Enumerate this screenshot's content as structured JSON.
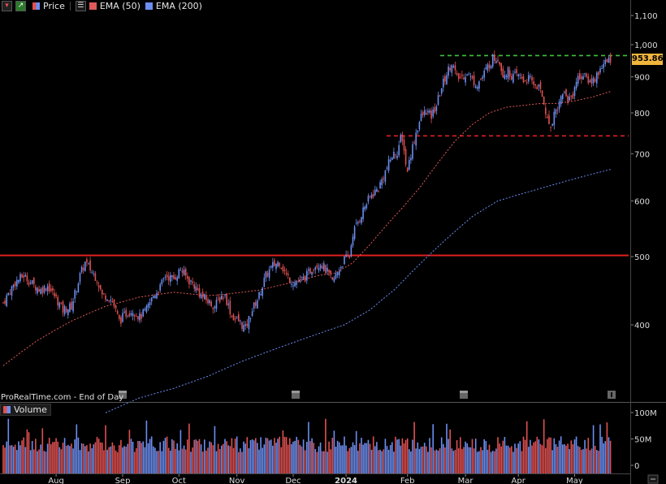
{
  "legend": {
    "price_label": "Price",
    "ema50_label": "EMA (50)",
    "ema200_label": "EMA (200)",
    "volume_label": "Volume",
    "ema50_color": "#e05a5a",
    "ema200_color": "#6b8ef0",
    "up_color": "#6b8ef0",
    "down_color": "#e05050"
  },
  "footer": {
    "source": "ProRealTime.com - End of Day"
  },
  "last_price": "953.86",
  "chart_data": {
    "type": "candlestick",
    "price_axis": {
      "scale": "log",
      "range": [
        330,
        1150
      ],
      "ticks": [
        "1,100",
        "1,000",
        "900",
        "800",
        "700",
        "600",
        "500",
        "400"
      ],
      "tick_values": [
        1100,
        1000,
        900,
        800,
        700,
        600,
        500,
        400
      ]
    },
    "volume_axis": {
      "range": [
        0,
        120
      ],
      "unit": "M",
      "ticks": [
        "100M",
        "50M",
        "0"
      ],
      "tick_values": [
        100,
        50,
        0
      ]
    },
    "time_axis": {
      "labels": [
        "Aug",
        "Sep",
        "Oct",
        "Nov",
        "Dec",
        "2024",
        "Feb",
        "Mar",
        "Apr",
        "May"
      ]
    },
    "horizontal_levels": [
      {
        "value": 965,
        "style": "dashed",
        "color": "#3fbf3f"
      },
      {
        "value": 742,
        "style": "dashed",
        "color": "#e02020"
      },
      {
        "value": 502,
        "style": "solid",
        "color": "#e02020"
      }
    ],
    "close_path": [
      [
        0,
        430
      ],
      [
        7,
        460
      ],
      [
        12,
        470
      ],
      [
        18,
        455
      ],
      [
        22,
        448
      ],
      [
        26,
        455
      ],
      [
        30,
        440
      ],
      [
        35,
        420
      ],
      [
        40,
        425
      ],
      [
        45,
        470
      ],
      [
        48,
        490
      ],
      [
        51,
        480
      ],
      [
        55,
        465
      ],
      [
        58,
        440
      ],
      [
        61,
        440
      ],
      [
        64,
        432
      ],
      [
        68,
        405
      ],
      [
        72,
        415
      ],
      [
        76,
        420
      ],
      [
        80,
        410
      ],
      [
        84,
        420
      ],
      [
        88,
        440
      ],
      [
        92,
        452
      ],
      [
        95,
        470
      ],
      [
        100,
        465
      ],
      [
        104,
        480
      ],
      [
        108,
        465
      ],
      [
        112,
        455
      ],
      [
        116,
        440
      ],
      [
        120,
        432
      ],
      [
        124,
        425
      ],
      [
        128,
        440
      ],
      [
        130,
        440
      ],
      [
        134,
        412
      ],
      [
        138,
        405
      ],
      [
        142,
        395
      ],
      [
        146,
        420
      ],
      [
        150,
        440
      ],
      [
        154,
        470
      ],
      [
        158,
        485
      ],
      [
        162,
        492
      ],
      [
        166,
        470
      ],
      [
        170,
        460
      ],
      [
        174,
        460
      ],
      [
        178,
        470
      ],
      [
        182,
        485
      ],
      [
        186,
        490
      ],
      [
        190,
        475
      ],
      [
        193,
        460
      ],
      [
        196,
        475
      ],
      [
        200,
        495
      ],
      [
        203,
        500
      ],
      [
        205,
        540
      ],
      [
        208,
        560
      ],
      [
        212,
        590
      ],
      [
        216,
        612
      ],
      [
        220,
        625
      ],
      [
        224,
        660
      ],
      [
        228,
        695
      ],
      [
        231,
        705
      ],
      [
        233,
        735
      ],
      [
        235,
        715
      ],
      [
        236,
        675
      ],
      [
        237,
        665
      ],
      [
        239,
        700
      ],
      [
        242,
        750
      ],
      [
        245,
        790
      ],
      [
        248,
        805
      ],
      [
        251,
        790
      ],
      [
        254,
        820
      ],
      [
        257,
        870
      ],
      [
        260,
        910
      ],
      [
        263,
        945
      ],
      [
        266,
        895
      ],
      [
        269,
        900
      ],
      [
        272,
        915
      ],
      [
        275,
        890
      ],
      [
        278,
        880
      ],
      [
        281,
        900
      ],
      [
        284,
        930
      ],
      [
        287,
        955
      ],
      [
        290,
        960
      ],
      [
        293,
        910
      ],
      [
        296,
        915
      ],
      [
        299,
        900
      ],
      [
        302,
        905
      ],
      [
        305,
        890
      ],
      [
        308,
        895
      ],
      [
        311,
        880
      ],
      [
        314,
        870
      ],
      [
        317,
        830
      ],
      [
        319,
        780
      ],
      [
        321,
        765
      ],
      [
        323,
        800
      ],
      [
        326,
        825
      ],
      [
        328,
        860
      ],
      [
        331,
        835
      ],
      [
        334,
        850
      ],
      [
        336,
        890
      ],
      [
        339,
        905
      ],
      [
        342,
        895
      ],
      [
        345,
        885
      ],
      [
        348,
        905
      ],
      [
        351,
        935
      ],
      [
        354,
        945
      ],
      [
        356,
        953.86
      ]
    ],
    "ema50_path": [
      [
        0,
        350
      ],
      [
        20,
        380
      ],
      [
        40,
        405
      ],
      [
        60,
        425
      ],
      [
        80,
        438
      ],
      [
        100,
        445
      ],
      [
        120,
        440
      ],
      [
        130,
        442
      ],
      [
        150,
        448
      ],
      [
        170,
        460
      ],
      [
        185,
        470
      ],
      [
        195,
        474
      ],
      [
        205,
        490
      ],
      [
        215,
        520
      ],
      [
        225,
        555
      ],
      [
        235,
        590
      ],
      [
        245,
        630
      ],
      [
        255,
        680
      ],
      [
        265,
        730
      ],
      [
        275,
        770
      ],
      [
        285,
        800
      ],
      [
        295,
        815
      ],
      [
        305,
        820
      ],
      [
        315,
        825
      ],
      [
        325,
        825
      ],
      [
        335,
        832
      ],
      [
        345,
        842
      ],
      [
        356,
        858
      ]
    ],
    "ema200_path": [
      [
        60,
        300
      ],
      [
        80,
        315
      ],
      [
        100,
        325
      ],
      [
        120,
        338
      ],
      [
        140,
        355
      ],
      [
        160,
        370
      ],
      [
        180,
        385
      ],
      [
        200,
        400
      ],
      [
        215,
        420
      ],
      [
        230,
        450
      ],
      [
        245,
        490
      ],
      [
        260,
        530
      ],
      [
        275,
        570
      ],
      [
        290,
        600
      ],
      [
        305,
        615
      ],
      [
        320,
        630
      ],
      [
        335,
        645
      ],
      [
        356,
        665
      ]
    ]
  }
}
